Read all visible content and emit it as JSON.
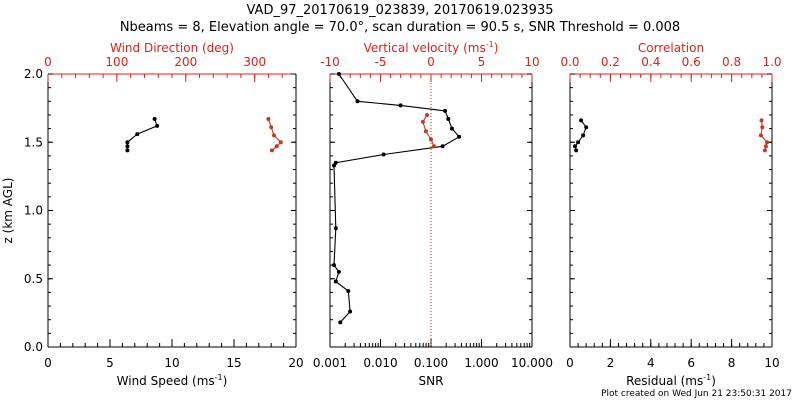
{
  "title_line1": "VAD_97_20170619_023839, 20170619.023935",
  "title_line2": "Nbeams = 8, Elevation angle = 70.0°, scan duration = 90.5 s, SNR Threshold = 0.008",
  "footer": "Plot created on Wed Jun 21 23:50:31 2017",
  "colors": {
    "axis": "#000000",
    "red": "#e0201c",
    "dir_series": "#c03a24",
    "dotted": "#e0201c"
  },
  "chart_data": [
    {
      "type": "line",
      "name": "wind",
      "ylabel": "z (km AGL)",
      "ylim": [
        0,
        2
      ],
      "yticks": [
        0.0,
        0.5,
        1.0,
        1.5,
        2.0
      ],
      "ytick_labels": [
        "0.0",
        "0.5",
        "1.0",
        "1.5",
        "2.0"
      ],
      "bottom_axis": {
        "label": "Wind Speed (ms",
        "label_sup": "-1",
        "label_end": ")",
        "range": [
          0,
          20
        ],
        "ticks": [
          0,
          5,
          10,
          15,
          20
        ],
        "tick_labels": [
          "0",
          "5",
          "10",
          "15",
          "20"
        ]
      },
      "top_axis": {
        "label": "Wind Direction (deg)",
        "range": [
          0,
          360
        ],
        "ticks": [
          0,
          100,
          200,
          300
        ],
        "tick_labels": [
          "0",
          "100",
          "200",
          "300"
        ]
      },
      "series": [
        {
          "name": "Wind Speed",
          "axis": "bottom",
          "color": "#000000",
          "x": [
            8.6,
            8.8,
            7.2,
            6.4,
            6.4,
            6.4
          ],
          "y": [
            1.67,
            1.62,
            1.56,
            1.5,
            1.47,
            1.44
          ]
        },
        {
          "name": "Wind Direction",
          "axis": "top",
          "color": "#c03a24",
          "x": [
            320,
            324,
            328,
            338,
            332,
            325
          ],
          "y": [
            1.67,
            1.61,
            1.55,
            1.5,
            1.47,
            1.44
          ]
        }
      ]
    },
    {
      "type": "line",
      "name": "snr",
      "ylim": [
        0,
        2
      ],
      "bottom_axis": {
        "label": "SNR",
        "scale": "log",
        "range": [
          0.001,
          10
        ],
        "ticks": [
          0.001,
          0.01,
          0.1,
          1,
          10
        ],
        "tick_labels": [
          "0.001",
          "0.010",
          "0.100",
          "1.000",
          "10.000"
        ]
      },
      "top_axis": {
        "label": "Vertical velocity (ms",
        "label_sup": "-1",
        "label_end": ")",
        "range": [
          -10,
          10
        ],
        "ticks": [
          -10,
          -5,
          0,
          5,
          10
        ],
        "tick_labels": [
          "-10",
          "-5",
          "0",
          "5",
          "10"
        ]
      },
      "reference_line": {
        "axis": "top",
        "value": 0,
        "style": "dotted"
      },
      "series": [
        {
          "name": "SNR",
          "axis": "bottom",
          "color": "#000000",
          "x": [
            0.0015,
            0.0035,
            0.025,
            0.19,
            0.22,
            0.26,
            0.36,
            0.17,
            0.0115,
            0.0013,
            0.0012,
            0.0013,
            0.0012,
            0.0015,
            0.0013,
            0.0023,
            0.0025,
            0.0016
          ],
          "y": [
            2.0,
            1.8,
            1.77,
            1.73,
            1.67,
            1.6,
            1.54,
            1.47,
            1.41,
            1.35,
            1.33,
            0.87,
            0.6,
            0.55,
            0.48,
            0.41,
            0.26,
            0.18
          ]
        },
        {
          "name": "Vertical velocity",
          "axis": "top",
          "color": "#c03a24",
          "x": [
            -0.4,
            -0.8,
            -0.5,
            0.0,
            0.3
          ],
          "y": [
            1.7,
            1.65,
            1.58,
            1.52,
            1.47
          ]
        }
      ]
    },
    {
      "type": "line",
      "name": "residual",
      "ylim": [
        0,
        2
      ],
      "bottom_axis": {
        "label": "Residual (ms",
        "label_sup": "-1",
        "label_end": ")",
        "range": [
          0,
          10
        ],
        "ticks": [
          0,
          2,
          4,
          6,
          8,
          10
        ],
        "tick_labels": [
          "0",
          "2",
          "4",
          "6",
          "8",
          "10"
        ]
      },
      "top_axis": {
        "label": "Correlation",
        "range": [
          0,
          1
        ],
        "ticks": [
          0,
          0.2,
          0.4,
          0.6,
          0.8,
          1.0
        ],
        "tick_labels": [
          "0.0",
          "0.2",
          "0.4",
          "0.6",
          "0.8",
          "1.0"
        ]
      },
      "series": [
        {
          "name": "Residual",
          "axis": "bottom",
          "color": "#000000",
          "x": [
            0.55,
            0.8,
            0.65,
            0.4,
            0.25,
            0.3
          ],
          "y": [
            1.66,
            1.61,
            1.55,
            1.5,
            1.47,
            1.44
          ]
        },
        {
          "name": "Correlation",
          "axis": "top",
          "color": "#c03a24",
          "x": [
            0.948,
            0.952,
            0.945,
            0.975,
            0.97,
            0.965
          ],
          "y": [
            1.66,
            1.61,
            1.55,
            1.5,
            1.47,
            1.44
          ]
        }
      ]
    }
  ]
}
